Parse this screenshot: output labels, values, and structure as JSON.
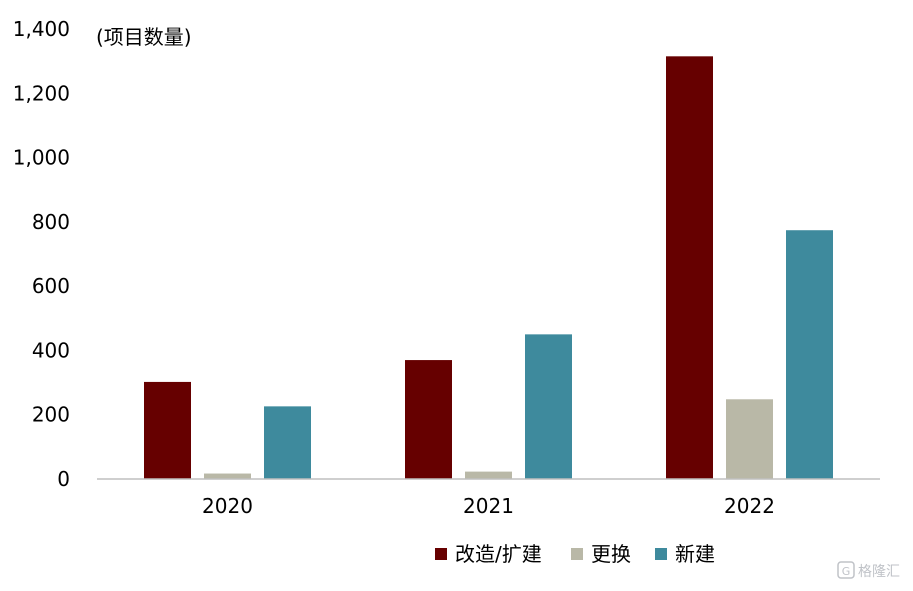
{
  "chart_data": {
    "type": "bar",
    "unit_label": "(项目数量)",
    "categories": [
      "2020",
      "2021",
      "2022"
    ],
    "series": [
      {
        "name": "改造/扩建",
        "color": "#660000",
        "values": [
          302,
          370,
          1315
        ]
      },
      {
        "name": "更换",
        "color": "#b9b8a7",
        "values": [
          17,
          23,
          248
        ]
      },
      {
        "name": "新建",
        "color": "#3e8a9d",
        "values": [
          226,
          450,
          774
        ]
      }
    ],
    "ylim": [
      0,
      1400
    ],
    "yticks": [
      0,
      200,
      400,
      600,
      800,
      1000,
      1200,
      1400
    ],
    "ytick_labels": [
      "0",
      "200",
      "400",
      "600",
      "800",
      "1,000",
      "1,200",
      "1,400"
    ],
    "grid": false,
    "legend_position": "bottom-center"
  },
  "watermark": {
    "text": "格隆汇"
  }
}
